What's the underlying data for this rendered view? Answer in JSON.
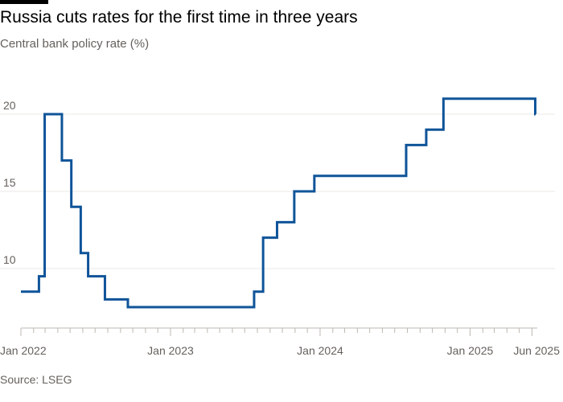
{
  "header": {
    "title": "Russia cuts rates for the first time in three years",
    "subtitle": "Central bank policy rate (%)"
  },
  "footer": {
    "source": "Source: LSEG"
  },
  "colors": {
    "series": "#0f5499",
    "grid": "#ebe8e4",
    "axis": "#bdb8b3",
    "text_muted": "#66605c"
  },
  "chart_data": {
    "type": "line",
    "title": "Russia cuts rates for the first time in three years",
    "subtitle": "Central bank policy rate (%)",
    "xlabel": "",
    "ylabel": "",
    "x_scale": "time",
    "xlim": [
      "2022-01-01",
      "2025-06-10"
    ],
    "ylim": [
      7.5,
      21
    ],
    "y_ticks": [
      10,
      15,
      20
    ],
    "x_ticks": [
      {
        "date": "2022-01-01",
        "label": "Jan 2022"
      },
      {
        "date": "2023-01-01",
        "label": "Jan 2023"
      },
      {
        "date": "2024-01-01",
        "label": "Jan 2024"
      },
      {
        "date": "2025-01-01",
        "label": "Jan 2025"
      },
      {
        "date": "2025-06-01",
        "label": "Jun 2025"
      }
    ],
    "grid": true,
    "legend": "none",
    "series": [
      {
        "step": "post",
        "points": [
          [
            "2022-01-01",
            8.5
          ],
          [
            "2022-02-14",
            9.5
          ],
          [
            "2022-02-28",
            20
          ],
          [
            "2022-04-11",
            17
          ],
          [
            "2022-05-04",
            14
          ],
          [
            "2022-05-27",
            11
          ],
          [
            "2022-06-14",
            9.5
          ],
          [
            "2022-07-25",
            8
          ],
          [
            "2022-09-19",
            7.5
          ],
          [
            "2023-07-24",
            8.5
          ],
          [
            "2023-08-15",
            12
          ],
          [
            "2023-09-18",
            13
          ],
          [
            "2023-10-30",
            15
          ],
          [
            "2023-12-18",
            16
          ],
          [
            "2024-07-29",
            18
          ],
          [
            "2024-09-16",
            19
          ],
          [
            "2024-10-28",
            21
          ],
          [
            "2025-06-09",
            20
          ],
          [
            "2025-06-10",
            20
          ]
        ]
      }
    ]
  }
}
